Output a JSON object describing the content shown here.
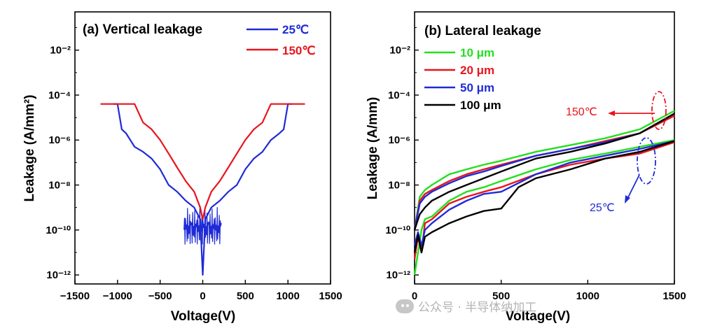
{
  "chart_data": [
    {
      "type": "line",
      "panel": "a",
      "title": "(a) Vertical leakage",
      "xlabel": "Voltage(V)",
      "ylabel": "Leakage (A/mm²)",
      "xlim": [
        -1500,
        1500
      ],
      "ylim_log10": [
        -12.4,
        -0.3
      ],
      "yscale": "log",
      "xticks": [
        "−1500",
        "−1000",
        "−500",
        "0",
        "500",
        "1000",
        "1500"
      ],
      "yticks": [
        "10⁻¹²",
        "10⁻¹⁰",
        "10⁻⁸",
        "10⁻⁶",
        "10⁻⁴",
        "10⁻²"
      ],
      "legend_position": "top-right",
      "series": [
        {
          "name": "25℃",
          "color": "#1f2bd6",
          "x": [
            -1050,
            -1000,
            -950,
            -900,
            -800,
            -700,
            -600,
            -500,
            -400,
            -300,
            -200,
            -100,
            -30,
            0,
            30,
            100,
            200,
            300,
            400,
            500,
            600,
            700,
            800,
            900,
            950,
            1000,
            1050
          ],
          "y": [
            4e-05,
            4e-05,
            3e-06,
            2e-06,
            5e-07,
            3e-07,
            1.5e-07,
            5e-08,
            1e-08,
            5e-09,
            2e-09,
            1e-09,
            3e-10,
            1e-12,
            3e-10,
            1e-09,
            2e-09,
            5e-09,
            1e-08,
            5e-08,
            1.5e-07,
            3e-07,
            1e-06,
            2e-06,
            3e-06,
            4e-05,
            4e-05
          ]
        },
        {
          "name": "150℃",
          "color": "#e8141e",
          "x": [
            -1200,
            -900,
            -800,
            -700,
            -600,
            -500,
            -400,
            -300,
            -200,
            -100,
            -30,
            0,
            30,
            100,
            200,
            300,
            400,
            500,
            600,
            700,
            800,
            900,
            1200
          ],
          "y": [
            4e-05,
            4e-05,
            4e-05,
            6e-06,
            3e-06,
            1e-06,
            2.5e-07,
            6e-08,
            1.5e-08,
            5e-09,
            1e-09,
            3e-10,
            1e-09,
            5e-09,
            1.5e-08,
            6e-08,
            2.5e-07,
            1e-06,
            3e-06,
            6e-06,
            4e-05,
            4e-05,
            4e-05
          ]
        }
      ]
    },
    {
      "type": "line",
      "panel": "b",
      "title": "(b) Lateral leakage",
      "xlabel": "Voltage(V)",
      "ylabel": "Leakage (A/mm)",
      "xlim": [
        0,
        1500
      ],
      "ylim_log10": [
        -12.4,
        -0.3
      ],
      "yscale": "log",
      "xticks": [
        "0",
        "500",
        "1000",
        "1500"
      ],
      "yticks": [
        "10⁻¹²",
        "10⁻¹⁰",
        "10⁻⁸",
        "10⁻⁶",
        "10⁻⁴",
        "10⁻²"
      ],
      "legend_position": "top-left",
      "annotations": [
        {
          "text": "150℃",
          "color": "#e8141e"
        },
        {
          "text": "25℃",
          "color": "#1f2bd6"
        }
      ],
      "series": [
        {
          "name": "10 μm",
          "color": "#22e01e",
          "hot": {
            "x": [
              0,
              30,
              60,
              100,
              200,
              300,
              400,
              500,
              700,
              900,
              1100,
              1300,
              1500
            ],
            "y": [
              1e-10,
              3e-09,
              6e-09,
              1e-08,
              3e-08,
              5e-08,
              8e-08,
              1.2e-07,
              3e-07,
              6e-07,
              1.2e-06,
              3e-06,
              2e-05
            ]
          },
          "cold": {
            "x": [
              0,
              20,
              40,
              60,
              100,
              200,
              300,
              400,
              500,
              700,
              900,
              1100,
              1300,
              1500
            ],
            "y": [
              1e-12,
              1e-11,
              1e-10,
              3e-10,
              4e-10,
              2e-09,
              5e-09,
              8e-09,
              1.5e-08,
              5e-08,
              1.3e-07,
              2.5e-07,
              5e-07,
              1e-06
            ]
          }
        },
        {
          "name": "20 μm",
          "color": "#e8141e",
          "hot": {
            "x": [
              0,
              30,
              60,
              100,
              200,
              300,
              400,
              500,
              700,
              900,
              1100,
              1300,
              1500
            ],
            "y": [
              1e-10,
              2e-09,
              4e-09,
              6e-09,
              1.5e-08,
              3e-08,
              5e-08,
              8e-08,
              2e-07,
              4e-07,
              9e-07,
              2e-06,
              1.2e-05
            ]
          },
          "cold": {
            "x": [
              0,
              20,
              40,
              60,
              100,
              200,
              300,
              400,
              500,
              700,
              900,
              1100,
              1300,
              1500
            ],
            "y": [
              5e-12,
              5e-11,
              1e-11,
              2e-10,
              3e-10,
              1.5e-09,
              3e-09,
              5e-09,
              8e-09,
              3e-08,
              8e-08,
              1.5e-07,
              2.5e-07,
              8e-07
            ]
          }
        },
        {
          "name": "50 μm",
          "color": "#1f2bd6",
          "hot": {
            "x": [
              0,
              30,
              60,
              100,
              200,
              300,
              400,
              500,
              700,
              900,
              1100,
              1300,
              1500
            ],
            "y": [
              1e-10,
              1.5e-09,
              3e-09,
              5e-09,
              1.2e-08,
              2.5e-08,
              4e-08,
              7e-08,
              2e-07,
              4e-07,
              8e-07,
              2e-06,
              1.5e-05
            ]
          },
          "cold": {
            "x": [
              0,
              20,
              40,
              60,
              100,
              200,
              300,
              400,
              500,
              700,
              900,
              1100,
              1300,
              1500
            ],
            "y": [
              2e-11,
              8e-11,
              2e-11,
              1e-10,
              2e-10,
              8e-10,
              2e-09,
              4e-09,
              5e-09,
              3e-08,
              1e-07,
              2e-07,
              4e-07,
              9e-07
            ]
          }
        },
        {
          "name": "100 μm",
          "color": "#000000",
          "hot": {
            "x": [
              0,
              30,
              60,
              100,
              200,
              300,
              400,
              500,
              700,
              900,
              1100,
              1300,
              1500
            ],
            "y": [
              1e-10,
              5e-10,
              1e-09,
              2e-09,
              5e-09,
              1e-08,
              2e-08,
              4e-08,
              1.5e-07,
              3e-07,
              7e-07,
              2e-06,
              1.5e-05
            ]
          },
          "cold": {
            "x": [
              0,
              20,
              40,
              60,
              100,
              200,
              300,
              400,
              500,
              600,
              700,
              900,
              1100,
              1300,
              1500
            ],
            "y": [
              1e-11,
              6e-11,
              1e-11,
              5e-11,
              8e-11,
              2e-10,
              4e-10,
              7e-10,
              9e-10,
              8e-09,
              2e-08,
              5e-08,
              1.5e-07,
              3e-07,
              9e-07
            ]
          }
        }
      ]
    }
  ],
  "watermark": "公众号 · 半导体纳加工"
}
